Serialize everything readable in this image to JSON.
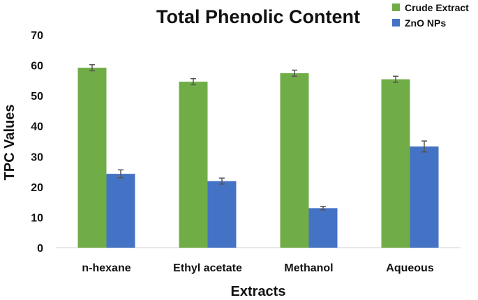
{
  "chart_data": {
    "type": "bar",
    "title": "Total Phenolic Content",
    "xlabel": "Extracts",
    "ylabel": "TPC Values",
    "categories": [
      "n-hexane",
      "Ethyl acetate",
      "Methanol",
      "Aqueous"
    ],
    "series": [
      {
        "name": "Crude Extract",
        "color": "#70AD47",
        "values": [
          59.2,
          54.6,
          57.4,
          55.4
        ],
        "errors": [
          1.0,
          1.0,
          1.0,
          1.0
        ]
      },
      {
        "name": "ZnO NPs",
        "color": "#4472C4",
        "values": [
          24.3,
          21.9,
          13.0,
          33.3
        ],
        "errors": [
          1.3,
          1.0,
          0.6,
          1.8
        ]
      }
    ],
    "ylim": [
      0,
      70
    ],
    "yticks": [
      0,
      10,
      20,
      30,
      40,
      50,
      60,
      70
    ],
    "grid": false,
    "legend_position": "top-right",
    "error_bar_color": "#555555"
  }
}
